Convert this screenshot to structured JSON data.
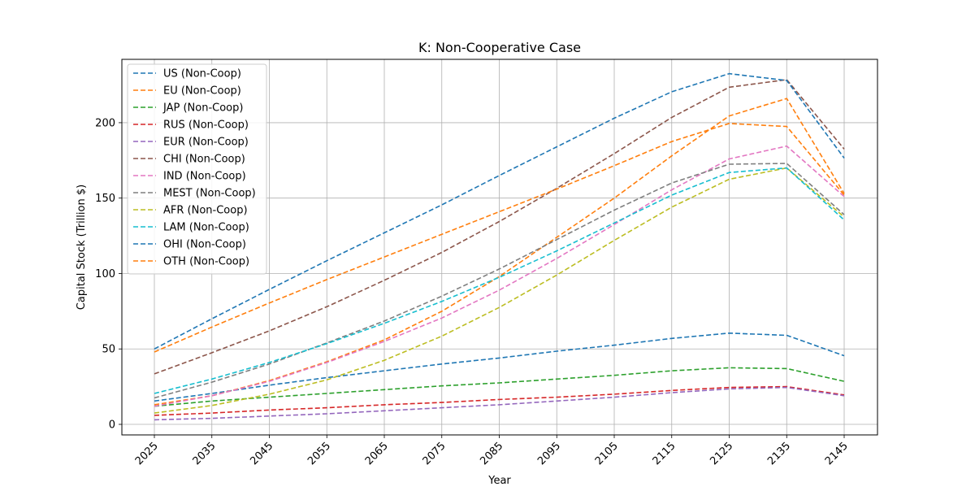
{
  "chart_data": {
    "type": "line",
    "title": "K: Non-Cooperative Case",
    "xlabel": "Year",
    "ylabel": "Capital Stock (Trillion $)",
    "x": [
      2025,
      2035,
      2045,
      2055,
      2065,
      2075,
      2085,
      2095,
      2105,
      2115,
      2125,
      2135,
      2145
    ],
    "xticks": [
      "2025",
      "2035",
      "2045",
      "2055",
      "2065",
      "2075",
      "2085",
      "2095",
      "2105",
      "2115",
      "2125",
      "2135",
      "2145"
    ],
    "yticks": [
      "0",
      "50",
      "100",
      "150",
      "200"
    ],
    "ytick_values": [
      0,
      50,
      100,
      150,
      200
    ],
    "ylim": [
      -7,
      242
    ],
    "grid": true,
    "legend_position": "top-left",
    "line_style": "dashed",
    "series": [
      {
        "name": "US (Non-Coop)",
        "color": "#1f77b4",
        "values": [
          15.5,
          20.5,
          26,
          31,
          35.5,
          40,
          44,
          48.5,
          52.5,
          57,
          60.5,
          59,
          45.5
        ]
      },
      {
        "name": "EU (Non-Coop)",
        "color": "#ff7f0e",
        "values": [
          13,
          19,
          29,
          41.5,
          56,
          75,
          98,
          124,
          150,
          178,
          204.5,
          216,
          153
        ]
      },
      {
        "name": "JAP (Non-Coop)",
        "color": "#2ca02c",
        "values": [
          12,
          15.5,
          18,
          20.5,
          23,
          25.5,
          27.5,
          30,
          32.5,
          35.5,
          37.5,
          37,
          28.5
        ]
      },
      {
        "name": "RUS (Non-Coop)",
        "color": "#d62728",
        "values": [
          6,
          7.5,
          9.5,
          11,
          13,
          14.5,
          16.5,
          18,
          20,
          22.5,
          24.5,
          25,
          19.5
        ]
      },
      {
        "name": "EUR (Non-Coop)",
        "color": "#9467bd",
        "values": [
          3,
          4,
          5.5,
          7,
          9,
          11,
          13,
          15.5,
          18,
          21,
          23.5,
          24.5,
          19
        ]
      },
      {
        "name": "CHI (Non-Coop)",
        "color": "#8c564b",
        "values": [
          33.5,
          47.5,
          62,
          78,
          95.5,
          114,
          134.5,
          156.5,
          179.5,
          203.5,
          223.5,
          228.5,
          182.5
        ]
      },
      {
        "name": "IND (Non-Coop)",
        "color": "#e377c2",
        "values": [
          12,
          19,
          28.5,
          41,
          55,
          70.5,
          89,
          110,
          132.5,
          155.5,
          176,
          184.5,
          151
        ]
      },
      {
        "name": "MEST (Non-Coop)",
        "color": "#7f7f7f",
        "values": [
          17.5,
          28,
          40,
          54,
          68.5,
          85,
          103,
          122.5,
          142,
          160,
          172.5,
          173,
          139
        ]
      },
      {
        "name": "AFR (Non-Coop)",
        "color": "#bcbd22",
        "values": [
          7.5,
          12.5,
          20,
          29.5,
          42.5,
          58.5,
          77.5,
          99,
          122,
          144,
          162.5,
          170,
          137.5
        ]
      },
      {
        "name": "LAM (Non-Coop)",
        "color": "#17becf",
        "values": [
          20.5,
          30,
          41,
          53.5,
          67,
          81.5,
          97.5,
          115,
          133.5,
          152,
          167,
          170,
          135.5
        ]
      },
      {
        "name": "OHI (Non-Coop)",
        "color": "#1f77b4",
        "values": [
          50,
          70,
          89.5,
          108.5,
          127,
          145.5,
          165,
          184,
          203,
          220.5,
          232.5,
          228,
          176.5
        ]
      },
      {
        "name": "OTH (Non-Coop)",
        "color": "#ff7f0e",
        "values": [
          48,
          64.5,
          80.5,
          96,
          111,
          126,
          141,
          156,
          171.5,
          187.5,
          199.5,
          197.5,
          152
        ]
      }
    ]
  }
}
